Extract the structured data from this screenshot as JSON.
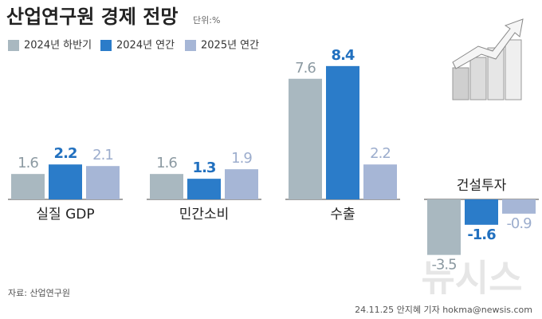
{
  "chart_data": {
    "type": "bar",
    "title": "산업연구원 경제 전망",
    "unit": "단위:%",
    "categories": [
      "실질 GDP",
      "민간소비",
      "수출",
      "건설투자"
    ],
    "series": [
      {
        "name": "2024년 하반기",
        "color": "#a9b8c0",
        "label_color": "#8c9aa2",
        "values": [
          1.6,
          1.6,
          7.6,
          -3.5
        ]
      },
      {
        "name": "2024년 연간",
        "color": "#2b7cc9",
        "label_color": "#2170bf",
        "values": [
          2.2,
          1.3,
          8.4,
          -1.6
        ]
      },
      {
        "name": "2025년 연간",
        "color": "#a6b6d6",
        "label_color": "#9cadcd",
        "values": [
          2.1,
          1.9,
          2.2,
          -0.9
        ]
      }
    ],
    "source": "자료: 산업연구원",
    "credit": "24.11.25 안지혜 기자 hokma@newsis.com",
    "watermark": "뉴시스"
  }
}
